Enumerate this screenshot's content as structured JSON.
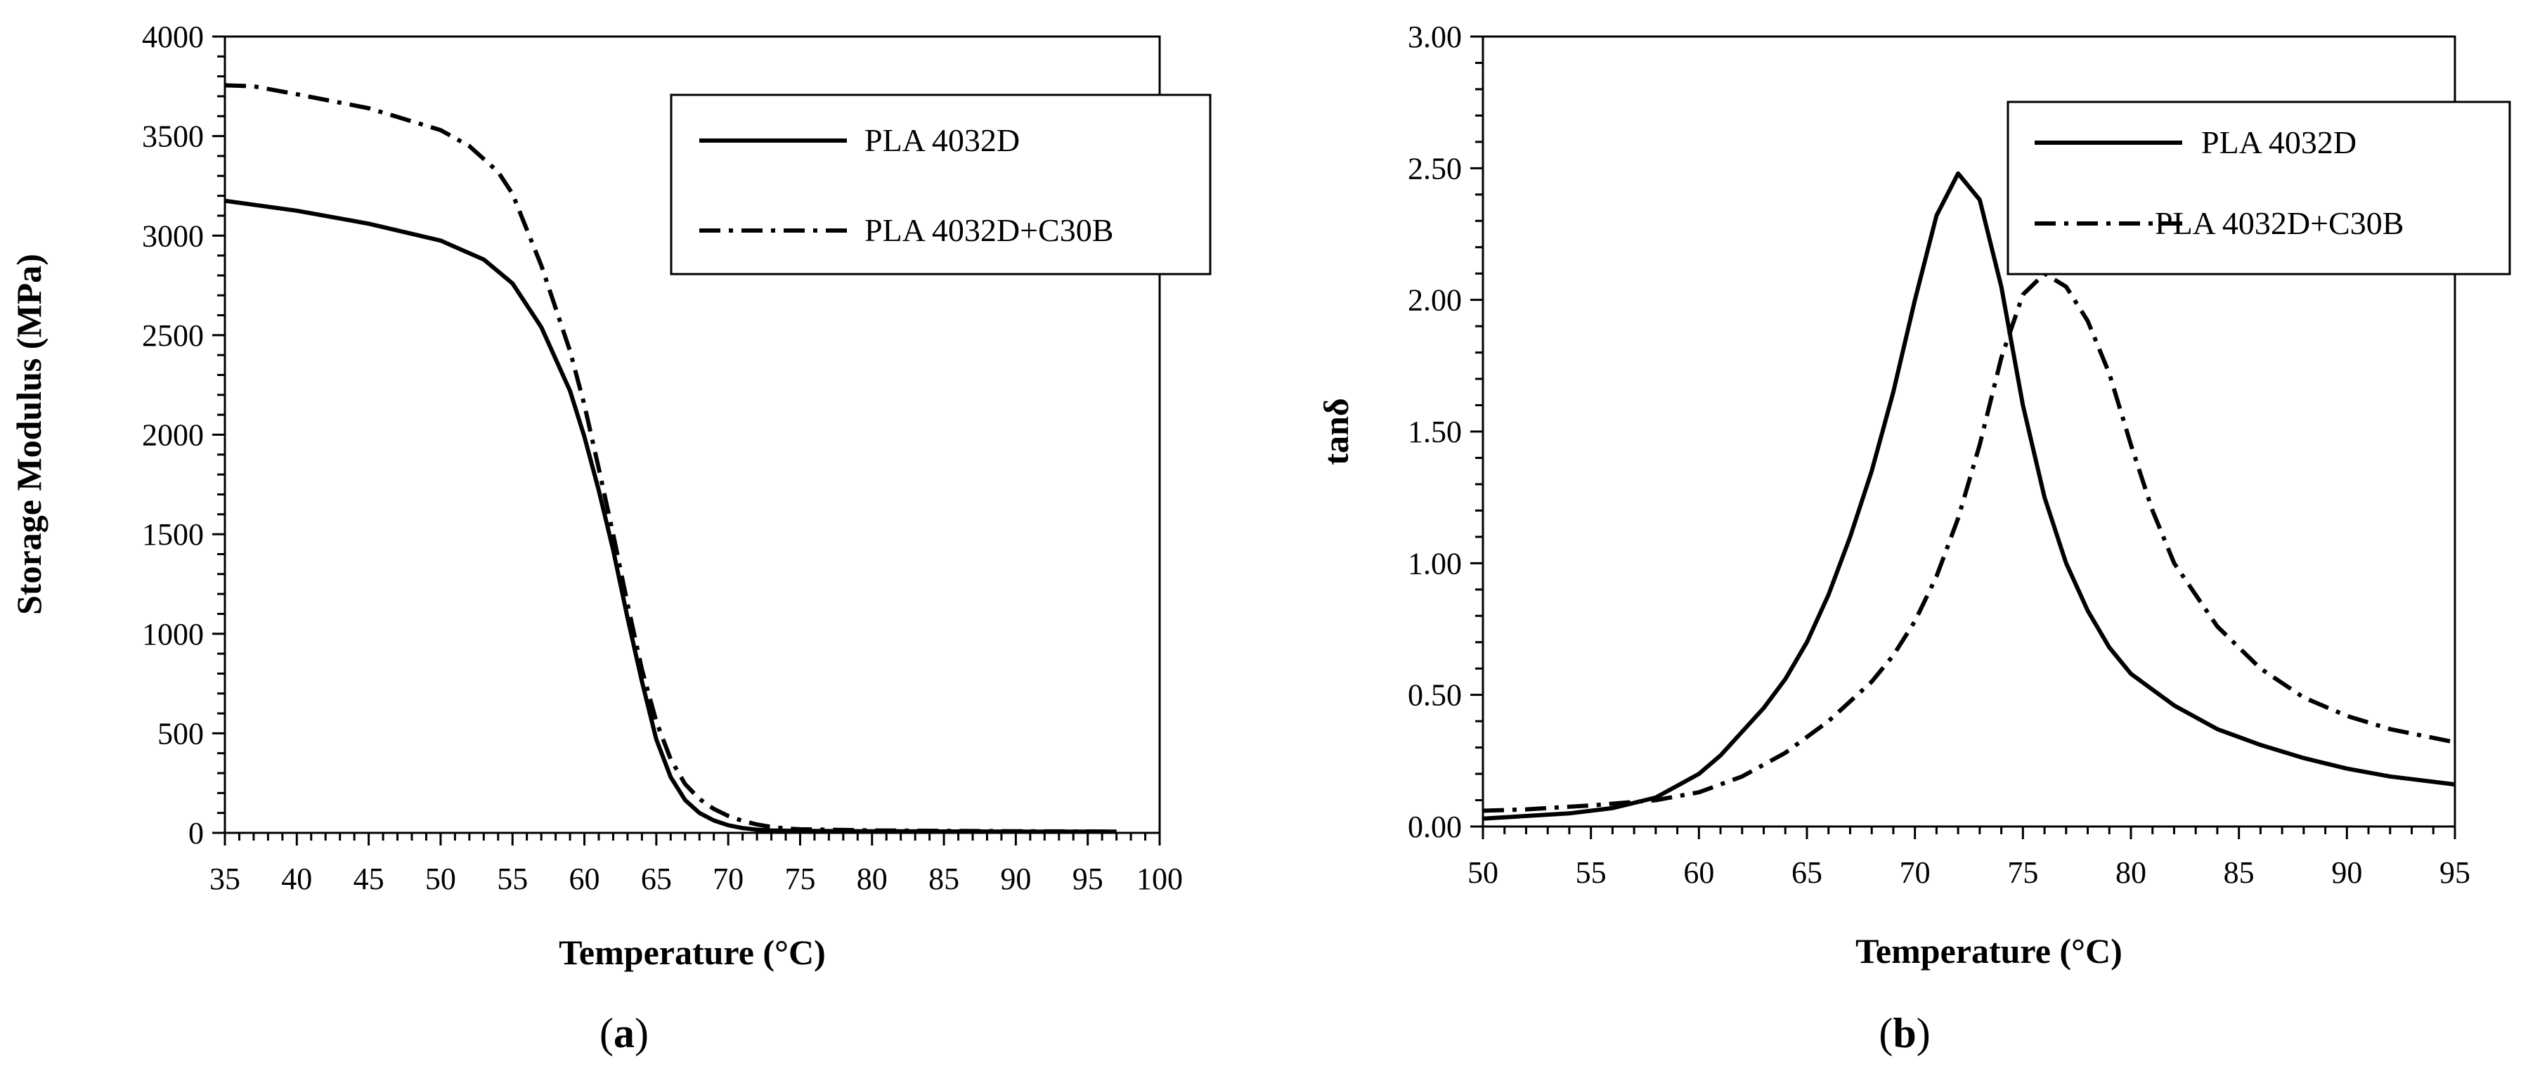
{
  "chart_data": [
    {
      "id": "a",
      "type": "line",
      "panel_label": "(a)",
      "panel_letter": "a",
      "xlabel": "Temperature (°C)",
      "ylabel": "Storage Modulus (MPa)",
      "xlim": [
        35,
        100
      ],
      "ylim": [
        0,
        4000
      ],
      "xticks": [
        35,
        40,
        45,
        50,
        55,
        60,
        65,
        70,
        75,
        80,
        85,
        90,
        95,
        100
      ],
      "yticks": [
        0,
        500,
        1000,
        1500,
        2000,
        2500,
        3000,
        3500,
        4000
      ],
      "ytick_decimals": 0,
      "minor_x_step": 1,
      "minor_y_step": 100,
      "legend_position": "top-right",
      "series": [
        {
          "name": "PLA 4032D",
          "style": "solid",
          "x": [
            35,
            40,
            45,
            50,
            53,
            55,
            57,
            59,
            60,
            61,
            62,
            63,
            64,
            65,
            66,
            67,
            68,
            69,
            70,
            71,
            72,
            73,
            75,
            80,
            85,
            90,
            95,
            97
          ],
          "y": [
            3175,
            3125,
            3060,
            2975,
            2880,
            2760,
            2540,
            2220,
            1990,
            1720,
            1420,
            1080,
            760,
            470,
            280,
            165,
            100,
            62,
            38,
            24,
            16,
            12,
            10,
            8,
            7,
            6,
            6,
            6
          ]
        },
        {
          "name": "PLA 4032D+C30B",
          "style": "dashdot",
          "x": [
            35,
            37,
            40,
            45,
            50,
            52,
            54,
            55,
            57,
            59,
            60,
            61,
            62,
            63,
            64,
            65,
            66,
            67,
            68,
            69,
            70,
            71,
            72,
            73,
            74,
            75,
            80,
            85,
            90,
            95,
            97
          ],
          "y": [
            3755,
            3750,
            3710,
            3640,
            3530,
            3450,
            3320,
            3210,
            2850,
            2420,
            2150,
            1830,
            1500,
            1150,
            820,
            560,
            370,
            245,
            170,
            120,
            85,
            60,
            42,
            30,
            22,
            18,
            12,
            10,
            8,
            7,
            6
          ]
        }
      ]
    },
    {
      "id": "b",
      "type": "line",
      "panel_label": "(b)",
      "panel_letter": "b",
      "xlabel": "Temperature (°C)",
      "ylabel": "tanδ",
      "xlim": [
        50,
        95
      ],
      "ylim": [
        0,
        3
      ],
      "xticks": [
        50,
        55,
        60,
        65,
        70,
        75,
        80,
        85,
        90,
        95
      ],
      "yticks": [
        0,
        0.5,
        1,
        1.5,
        2,
        2.5,
        3
      ],
      "ytick_decimals": 2,
      "minor_x_step": 1,
      "minor_y_step": 0.1,
      "legend_position": "top-right",
      "series": [
        {
          "name": "PLA 4032D",
          "style": "solid",
          "x": [
            50,
            52,
            54,
            56,
            58,
            60,
            61,
            62,
            63,
            64,
            65,
            66,
            67,
            68,
            69,
            70,
            71,
            72,
            73,
            74,
            75,
            76,
            77,
            78,
            79,
            80,
            82,
            84,
            86,
            88,
            90,
            92,
            95
          ],
          "y": [
            0.03,
            0.04,
            0.05,
            0.07,
            0.11,
            0.2,
            0.27,
            0.36,
            0.45,
            0.56,
            0.7,
            0.88,
            1.1,
            1.35,
            1.65,
            2.0,
            2.32,
            2.48,
            2.38,
            2.05,
            1.6,
            1.25,
            1.0,
            0.82,
            0.68,
            0.58,
            0.46,
            0.37,
            0.31,
            0.26,
            0.22,
            0.19,
            0.16
          ]
        },
        {
          "name": "PLA 4032D+C30B",
          "style": "dashdot",
          "x": [
            50,
            52,
            55,
            58,
            60,
            62,
            64,
            66,
            68,
            69,
            70,
            71,
            72,
            73,
            74,
            75,
            76,
            77,
            78,
            79,
            80,
            81,
            82,
            84,
            86,
            88,
            90,
            92,
            95
          ],
          "y": [
            0.06,
            0.065,
            0.08,
            0.1,
            0.13,
            0.19,
            0.28,
            0.4,
            0.55,
            0.65,
            0.78,
            0.95,
            1.17,
            1.45,
            1.78,
            2.02,
            2.1,
            2.05,
            1.92,
            1.72,
            1.45,
            1.2,
            1.0,
            0.76,
            0.6,
            0.49,
            0.42,
            0.37,
            0.32
          ]
        }
      ]
    }
  ]
}
